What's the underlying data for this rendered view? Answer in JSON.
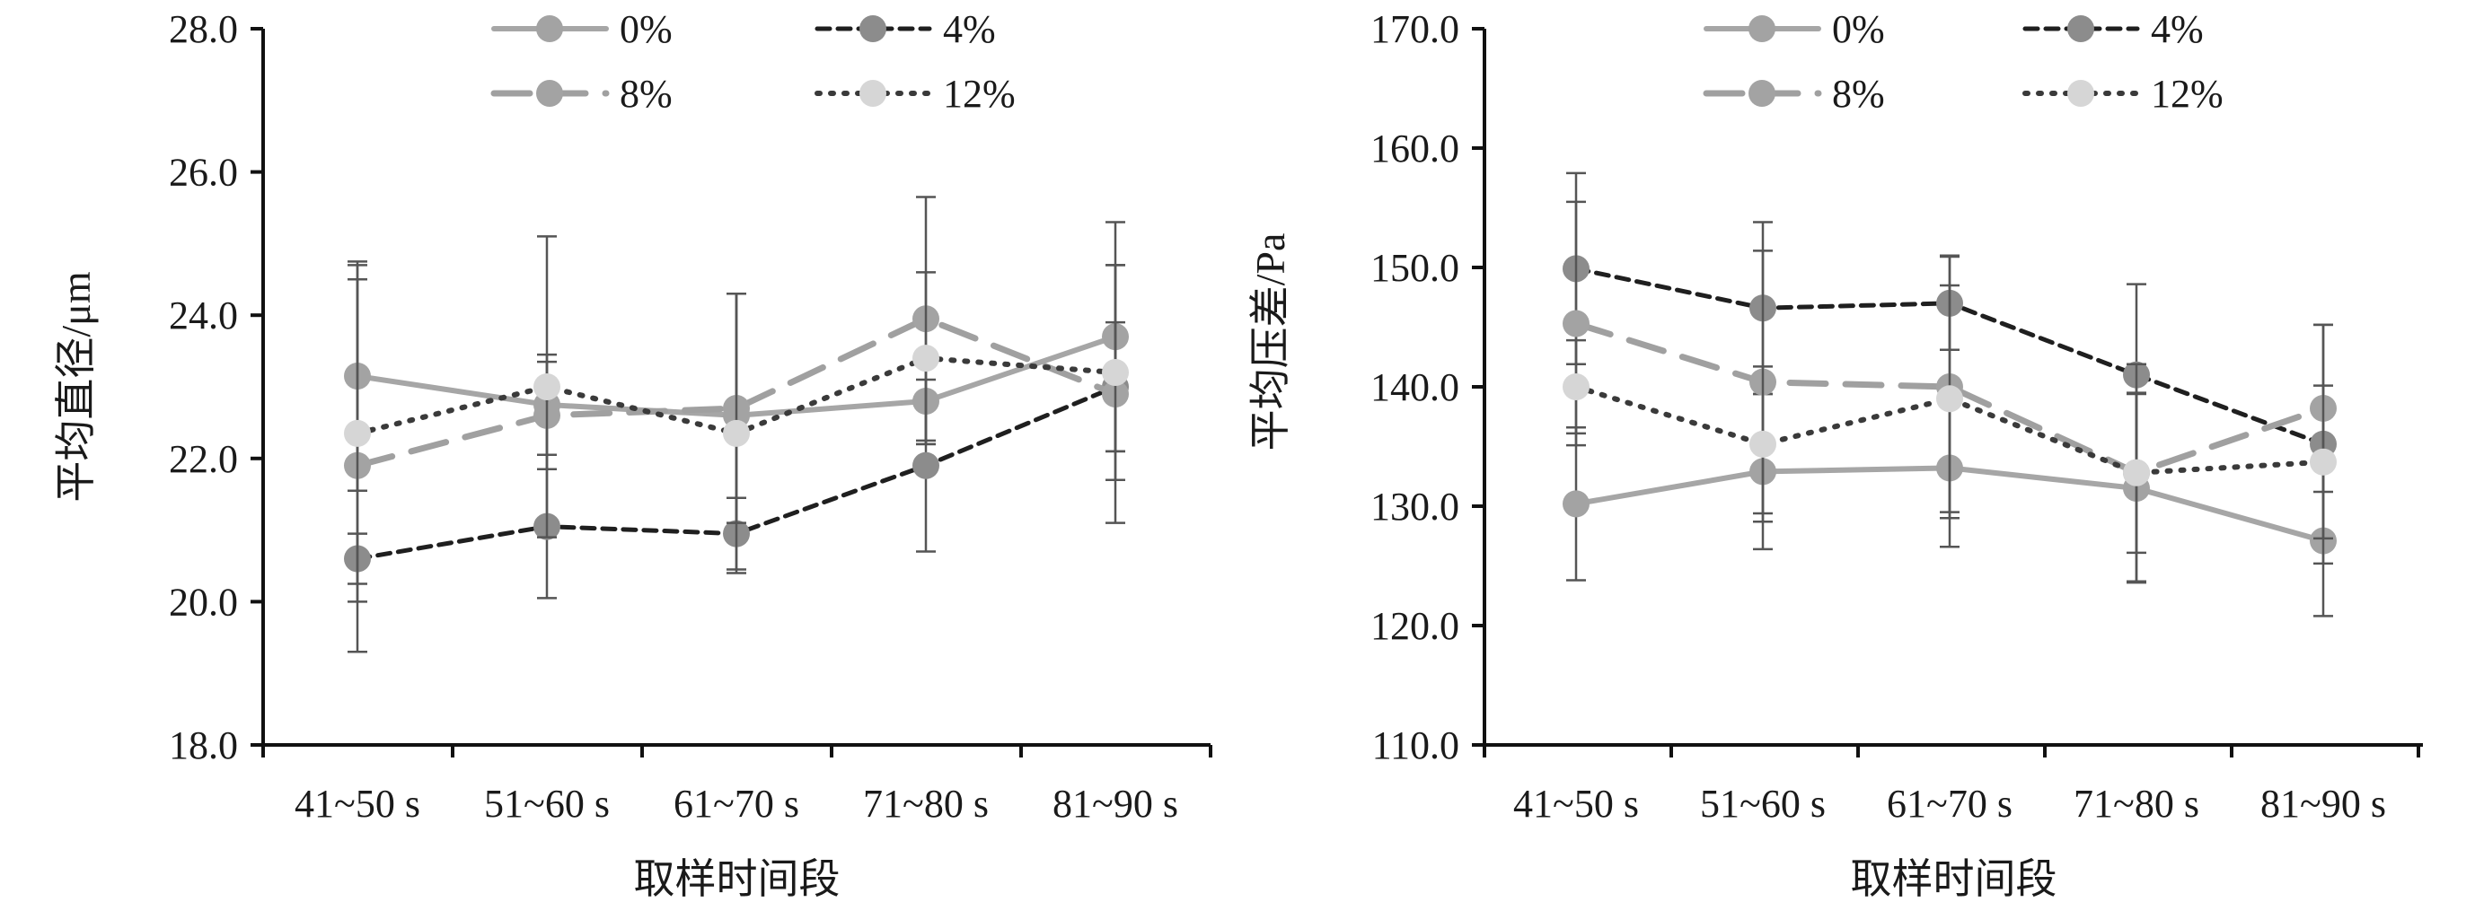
{
  "chart_data": [
    {
      "type": "line",
      "title": "",
      "xlabel": "取样时间段",
      "ylabel": "平均直径/μm",
      "categories": [
        "41~50 s",
        "51~60 s",
        "61~70 s",
        "71~80 s",
        "81~90 s"
      ],
      "ylim": [
        18.0,
        28.0
      ],
      "yticks": [
        "18.0",
        "20.0",
        "22.0",
        "24.0",
        "26.0",
        "28.0"
      ],
      "grid": false,
      "legend_position": "top",
      "series": [
        {
          "name": "0%",
          "values": [
            23.15,
            22.75,
            22.6,
            22.8,
            23.7
          ],
          "error": [
            1.6,
            0.7,
            1.7,
            0.6,
            1.6
          ],
          "color": "#a6a6a6",
          "dash": "solid"
        },
        {
          "name": "4%",
          "values": [
            20.6,
            21.05,
            20.95,
            21.9,
            23.0
          ],
          "error": [
            0.35,
            1.0,
            0.5,
            1.2,
            0.9
          ],
          "color": "#1f1f1f",
          "dash": "dashed"
        },
        {
          "name": "8%",
          "values": [
            21.9,
            22.6,
            22.7,
            23.95,
            22.9
          ],
          "error": [
            2.6,
            0.75,
            1.6,
            1.7,
            1.8
          ],
          "color": "#a0a0a0",
          "dash": "longdash"
        },
        {
          "name": "12%",
          "values": [
            22.35,
            23.0,
            22.35,
            23.4,
            23.2
          ],
          "error": [
            2.35,
            2.1,
            1.95,
            1.2,
            1.5
          ],
          "color": "#3a3a3a",
          "dash": "dotted",
          "marker_color": "#d6d6d6"
        }
      ]
    },
    {
      "type": "line",
      "title": "",
      "xlabel": "取样时间段",
      "ylabel": "平均压差/Pa",
      "categories": [
        "41~50 s",
        "51~60 s",
        "61~70 s",
        "71~80 s",
        "81~90 s"
      ],
      "ylim": [
        110.0,
        170.0
      ],
      "yticks": [
        "110.0",
        "120.0",
        "130.0",
        "140.0",
        "150.0",
        "160.0",
        "170.0"
      ],
      "grid": false,
      "legend_position": "top",
      "series": [
        {
          "name": "0%",
          "values": [
            130.2,
            132.9,
            133.2,
            131.5,
            127.1
          ],
          "error": [
            6.4,
            6.5,
            6.6,
            7.9,
            6.3
          ],
          "color": "#a6a6a6",
          "dash": "solid"
        },
        {
          "name": "4%",
          "values": [
            149.9,
            146.6,
            147.0,
            141.0,
            135.2
          ],
          "error": [
            8.0,
            7.2,
            3.9,
            7.6,
            10.0
          ],
          "color": "#1f1f1f",
          "dash": "dashed"
        },
        {
          "name": "8%",
          "values": [
            145.3,
            140.4,
            140.0,
            132.8,
            138.2
          ],
          "error": [
            10.2,
            11.0,
            11.0,
            9.1,
            7.0
          ],
          "color": "#a0a0a0",
          "dash": "longdash"
        },
        {
          "name": "12%",
          "values": [
            140.0,
            135.2,
            139.0,
            132.8,
            133.7
          ],
          "error": [
            3.9,
            6.5,
            9.5,
            6.7,
            6.4
          ],
          "color": "#3a3a3a",
          "dash": "dotted",
          "marker_color": "#d6d6d6"
        }
      ]
    }
  ]
}
